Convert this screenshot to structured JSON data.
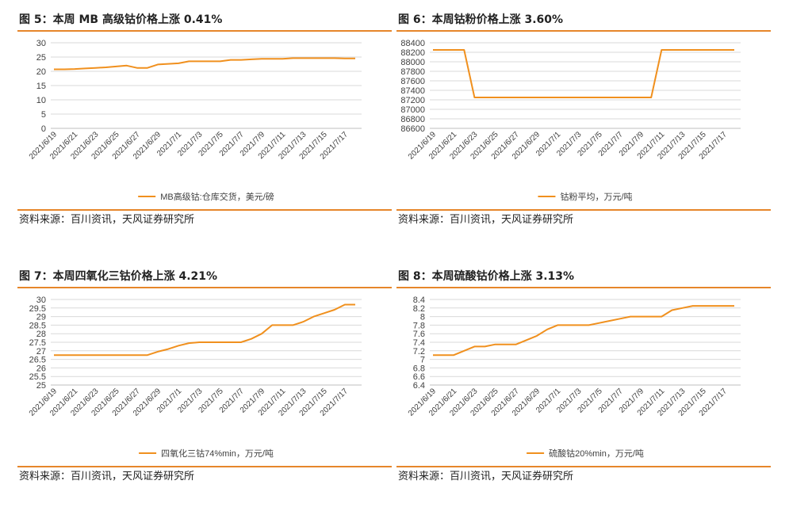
{
  "colors": {
    "accent": "#e6862a",
    "line": "#f0901e",
    "axis": "#d9d9d9"
  },
  "source_label": "资料来源：百川资讯，天风证券研究所",
  "dates": [
    "2021/6/19",
    "2021/6/21",
    "2021/6/23",
    "2021/6/25",
    "2021/6/27",
    "2021/6/29",
    "2021/7/1",
    "2021/7/3",
    "2021/7/5",
    "2021/7/7",
    "2021/7/9",
    "2021/7/11",
    "2021/7/13",
    "2021/7/15",
    "2021/7/17"
  ],
  "panels": [
    {
      "title": "图 5：本周 MB 高级钴价格上涨 0.41%"
    },
    {
      "title": "图 6：本周钴粉价格上涨 3.60%"
    },
    {
      "title": "图 7：本周四氧化三钴价格上涨 4.21%"
    },
    {
      "title": "图 8：本周硫酸钴价格上涨 3.13%"
    }
  ],
  "chart_data": [
    {
      "type": "line",
      "legend": "MB高级钴:仓库交货，美元/磅",
      "ylim": [
        0,
        30
      ],
      "yticks": [
        "0",
        "5",
        "10",
        "15",
        "20",
        "25",
        "30"
      ],
      "x": [
        0,
        1,
        2,
        3,
        4,
        5,
        6,
        7,
        8,
        9,
        10,
        11,
        12,
        13,
        14,
        15,
        16,
        17,
        18,
        19,
        20,
        21,
        22,
        23,
        24,
        25,
        26,
        27,
        28,
        29
      ],
      "values": [
        20.7,
        20.7,
        20.8,
        21.0,
        21.2,
        21.4,
        21.7,
        22.0,
        21.2,
        21.2,
        22.4,
        22.6,
        22.8,
        23.5,
        23.5,
        23.5,
        23.5,
        24.0,
        24.0,
        24.2,
        24.4,
        24.4,
        24.4,
        24.6,
        24.6,
        24.6,
        24.6,
        24.6,
        24.5,
        24.5
      ]
    },
    {
      "type": "line",
      "legend": "钴粉平均，万元/吨",
      "ylim": [
        86600,
        88400
      ],
      "yticks": [
        "86600",
        "86800",
        "87000",
        "87200",
        "87400",
        "87600",
        "87800",
        "88000",
        "88200",
        "88400"
      ],
      "x": [
        0,
        1,
        2,
        3,
        4,
        5,
        6,
        7,
        8,
        9,
        10,
        11,
        12,
        13,
        14,
        15,
        16,
        17,
        18,
        19,
        20,
        21,
        22,
        23,
        24,
        25,
        26,
        27,
        28,
        29
      ],
      "values": [
        88250,
        88250,
        88250,
        88250,
        87250,
        87250,
        87250,
        87250,
        87250,
        87250,
        87250,
        87250,
        87250,
        87250,
        87250,
        87250,
        87250,
        87250,
        87250,
        87250,
        87250,
        87250,
        88250,
        88250,
        88250,
        88250,
        88250,
        88250,
        88250,
        88250
      ]
    },
    {
      "type": "line",
      "legend": "四氧化三钴74%min，万元/吨",
      "ylim": [
        25,
        30
      ],
      "yticks": [
        "25",
        "25.5",
        "26",
        "26.5",
        "27",
        "27.5",
        "28",
        "28.5",
        "29",
        "29.5",
        "30"
      ],
      "x": [
        0,
        1,
        2,
        3,
        4,
        5,
        6,
        7,
        8,
        9,
        10,
        11,
        12,
        13,
        14,
        15,
        16,
        17,
        18,
        19,
        20,
        21,
        22,
        23,
        24,
        25,
        26,
        27,
        28,
        29
      ],
      "values": [
        26.75,
        26.75,
        26.75,
        26.75,
        26.75,
        26.75,
        26.75,
        26.75,
        26.75,
        26.75,
        26.95,
        27.1,
        27.3,
        27.45,
        27.5,
        27.5,
        27.5,
        27.5,
        27.5,
        27.7,
        28.0,
        28.5,
        28.5,
        28.5,
        28.7,
        29.0,
        29.2,
        29.4,
        29.7,
        29.7
      ]
    },
    {
      "type": "line",
      "legend": "硫酸钴20%min，万元/吨",
      "ylim": [
        6.4,
        8.4
      ],
      "yticks": [
        "6.4",
        "6.6",
        "6.8",
        "7",
        "7.2",
        "7.4",
        "7.6",
        "7.8",
        "8",
        "8.2",
        "8.4"
      ],
      "x": [
        0,
        1,
        2,
        3,
        4,
        5,
        6,
        7,
        8,
        9,
        10,
        11,
        12,
        13,
        14,
        15,
        16,
        17,
        18,
        19,
        20,
        21,
        22,
        23,
        24,
        25,
        26,
        27,
        28,
        29
      ],
      "values": [
        7.1,
        7.1,
        7.1,
        7.2,
        7.3,
        7.3,
        7.35,
        7.35,
        7.35,
        7.45,
        7.55,
        7.7,
        7.8,
        7.8,
        7.8,
        7.8,
        7.85,
        7.9,
        7.95,
        8.0,
        8.0,
        8.0,
        8.0,
        8.15,
        8.2,
        8.25,
        8.25,
        8.25,
        8.25,
        8.25
      ]
    }
  ]
}
